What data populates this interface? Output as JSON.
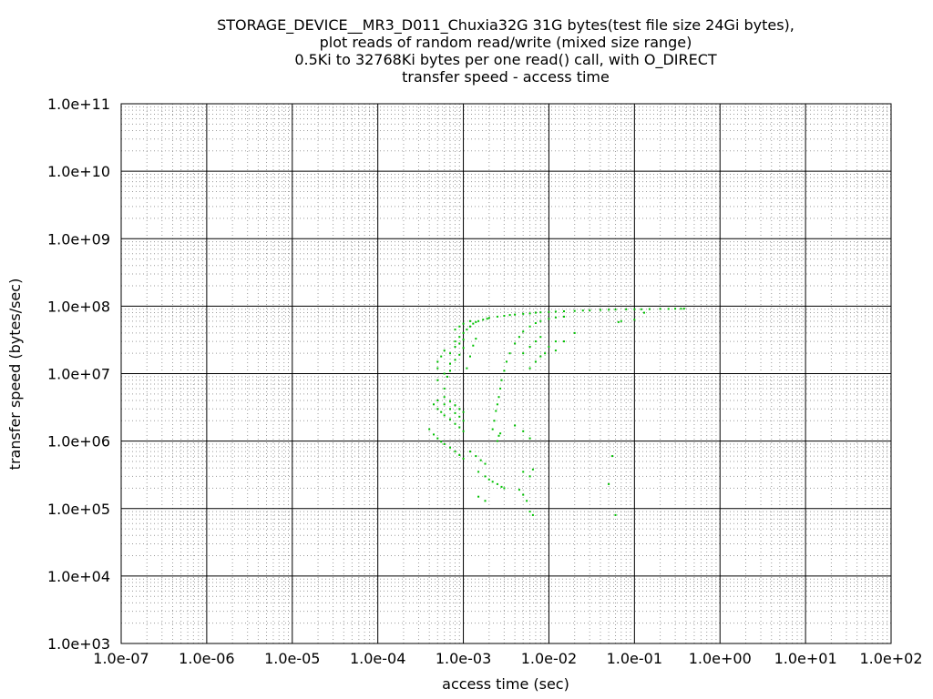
{
  "chart_data": {
    "type": "scatter",
    "title_lines": [
      "STORAGE_DEVICE__MR3_D011_Chuxia32G 31G bytes(test file size 24Gi bytes),",
      "plot reads of random read/write (mixed size range)",
      "0.5Ki to 32768Ki bytes per one read() call, with O_DIRECT",
      "transfer speed - access time"
    ],
    "xlabel": "access time (sec)",
    "ylabel": "transfer speed (bytes/sec)",
    "x_scale": "log",
    "y_scale": "log",
    "xlim": [
      1e-07,
      100
    ],
    "ylim": [
      1000,
      100000000000
    ],
    "x_ticks": [
      "1.0e-07",
      "1.0e-06",
      "1.0e-05",
      "1.0e-04",
      "1.0e-03",
      "1.0e-02",
      "1.0e-01",
      "1.0e+00",
      "1.0e+01",
      "1.0e+02"
    ],
    "y_ticks": [
      "1.0e+03",
      "1.0e+04",
      "1.0e+05",
      "1.0e+06",
      "1.0e+07",
      "1.0e+08",
      "1.0e+09",
      "1.0e+10",
      "1.0e+11"
    ],
    "grid": true,
    "point_color": "#00c000",
    "series": [
      {
        "points": [
          [
            0.0004,
            1500000
          ],
          [
            0.00045,
            1250000
          ],
          [
            0.0005,
            1100000
          ],
          [
            0.00055,
            980000
          ],
          [
            0.0006,
            900000
          ],
          [
            0.0007,
            800000
          ],
          [
            0.0008,
            700000
          ],
          [
            0.0009,
            620000
          ],
          [
            0.001,
            550000
          ],
          [
            0.00045,
            3500000
          ],
          [
            0.0005,
            3000000
          ],
          [
            0.00055,
            2700000
          ],
          [
            0.0006,
            2400000
          ],
          [
            0.0007,
            2100000
          ],
          [
            0.0008,
            1800000
          ],
          [
            0.0009,
            1600000
          ],
          [
            0.001,
            1400000
          ],
          [
            0.0005,
            4000000
          ],
          [
            0.0006,
            3500000
          ],
          [
            0.0007,
            3000000
          ],
          [
            0.0008,
            2600000
          ],
          [
            0.0009,
            2300000
          ],
          [
            0.001,
            2000000
          ],
          [
            0.0006,
            4500000
          ],
          [
            0.0007,
            3900000
          ],
          [
            0.0008,
            3400000
          ],
          [
            0.0009,
            3000000
          ],
          [
            0.001,
            2700000
          ],
          [
            0.0015,
            350000
          ],
          [
            0.0018,
            300000
          ],
          [
            0.002,
            270000
          ],
          [
            0.0022,
            250000
          ],
          [
            0.0025,
            230000
          ],
          [
            0.0028,
            210000
          ],
          [
            0.003,
            200000
          ],
          [
            0.0012,
            700000
          ],
          [
            0.0014,
            600000
          ],
          [
            0.0016,
            520000
          ],
          [
            0.0018,
            460000
          ],
          [
            0.0015,
            150000
          ],
          [
            0.0018,
            130000
          ],
          [
            0.0005,
            8000000
          ],
          [
            0.0005,
            12000000
          ],
          [
            0.00055,
            18000000
          ],
          [
            0.0006,
            22000000
          ],
          [
            0.0005,
            15000000
          ],
          [
            0.0006,
            10000000
          ],
          [
            0.0007,
            14000000
          ],
          [
            0.0007,
            20000000
          ],
          [
            0.0008,
            25000000
          ],
          [
            0.0008,
            30000000
          ],
          [
            0.0009,
            35000000
          ],
          [
            0.0009,
            28000000
          ],
          [
            0.001,
            40000000
          ],
          [
            0.001,
            32000000
          ],
          [
            0.0011,
            45000000
          ],
          [
            0.0012,
            50000000
          ],
          [
            0.0013,
            55000000
          ],
          [
            0.0014,
            58000000
          ],
          [
            0.0015,
            60000000
          ],
          [
            0.0017,
            63000000
          ],
          [
            0.0019,
            65000000
          ],
          [
            0.002,
            67000000
          ],
          [
            0.0025,
            70000000
          ],
          [
            0.003,
            72000000
          ],
          [
            0.0035,
            74000000
          ],
          [
            0.004,
            75000000
          ],
          [
            0.005,
            77000000
          ],
          [
            0.006,
            78000000
          ],
          [
            0.007,
            80000000
          ],
          [
            0.008,
            81000000
          ],
          [
            0.01,
            82000000
          ],
          [
            0.012,
            83000000
          ],
          [
            0.015,
            84000000
          ],
          [
            0.02,
            85000000
          ],
          [
            0.025,
            86000000
          ],
          [
            0.03,
            87000000
          ],
          [
            0.04,
            88000000
          ],
          [
            0.05,
            88500000
          ],
          [
            0.06,
            89000000
          ],
          [
            0.08,
            89500000
          ],
          [
            0.1,
            90000000
          ],
          [
            0.12,
            90000000
          ],
          [
            0.15,
            90500000
          ],
          [
            0.2,
            91000000
          ],
          [
            0.25,
            91000000
          ],
          [
            0.3,
            91500000
          ],
          [
            0.35,
            91500000
          ],
          [
            0.38,
            92000000
          ],
          [
            0.0006,
            6000000
          ],
          [
            0.00065,
            9000000
          ],
          [
            0.0007,
            11000000
          ],
          [
            0.0008,
            16000000
          ],
          [
            0.0009,
            19000000
          ],
          [
            0.001,
            24000000
          ],
          [
            0.0011,
            12000000
          ],
          [
            0.0012,
            18000000
          ],
          [
            0.0013,
            26000000
          ],
          [
            0.0014,
            33000000
          ],
          [
            0.0022,
            1500000
          ],
          [
            0.0023,
            2000000
          ],
          [
            0.0024,
            2800000
          ],
          [
            0.0025,
            3500000
          ],
          [
            0.0026,
            4500000
          ],
          [
            0.0027,
            6000000
          ],
          [
            0.0028,
            8000000
          ],
          [
            0.003,
            11000000
          ],
          [
            0.0032,
            15000000
          ],
          [
            0.0035,
            20000000
          ],
          [
            0.004,
            28000000
          ],
          [
            0.0045,
            35000000
          ],
          [
            0.005,
            42000000
          ],
          [
            0.006,
            50000000
          ],
          [
            0.007,
            56000000
          ],
          [
            0.008,
            60000000
          ],
          [
            0.01,
            65000000
          ],
          [
            0.012,
            68000000
          ],
          [
            0.015,
            70000000
          ],
          [
            0.0025,
            1000000
          ],
          [
            0.0026,
            1200000
          ],
          [
            0.0027,
            1300000
          ],
          [
            0.005,
            20000000
          ],
          [
            0.006,
            25000000
          ],
          [
            0.007,
            30000000
          ],
          [
            0.008,
            35000000
          ],
          [
            0.006,
            12000000
          ],
          [
            0.007,
            15000000
          ],
          [
            0.008,
            18000000
          ],
          [
            0.009,
            20000000
          ],
          [
            0.01,
            25000000
          ],
          [
            0.012,
            30000000
          ],
          [
            0.004,
            1700000
          ],
          [
            0.005,
            1400000
          ],
          [
            0.006,
            1100000
          ],
          [
            0.005,
            350000
          ],
          [
            0.006,
            300000
          ],
          [
            0.0065,
            380000
          ],
          [
            0.0045,
            190000
          ],
          [
            0.005,
            160000
          ],
          [
            0.0055,
            130000
          ],
          [
            0.006,
            90000
          ],
          [
            0.0065,
            80000
          ],
          [
            0.055,
            600000
          ],
          [
            0.05,
            230000
          ],
          [
            0.06,
            80000
          ],
          [
            0.065,
            58000000
          ],
          [
            0.07,
            60000000
          ],
          [
            0.1,
            63000000
          ],
          [
            0.13,
            80000000
          ],
          [
            0.02,
            40000000
          ],
          [
            0.015,
            30000000
          ],
          [
            0.012,
            22000000
          ],
          [
            0.0008,
            45000000
          ],
          [
            0.0009,
            50000000
          ],
          [
            0.001,
            55000000
          ],
          [
            0.0012,
            60000000
          ]
        ]
      }
    ]
  }
}
